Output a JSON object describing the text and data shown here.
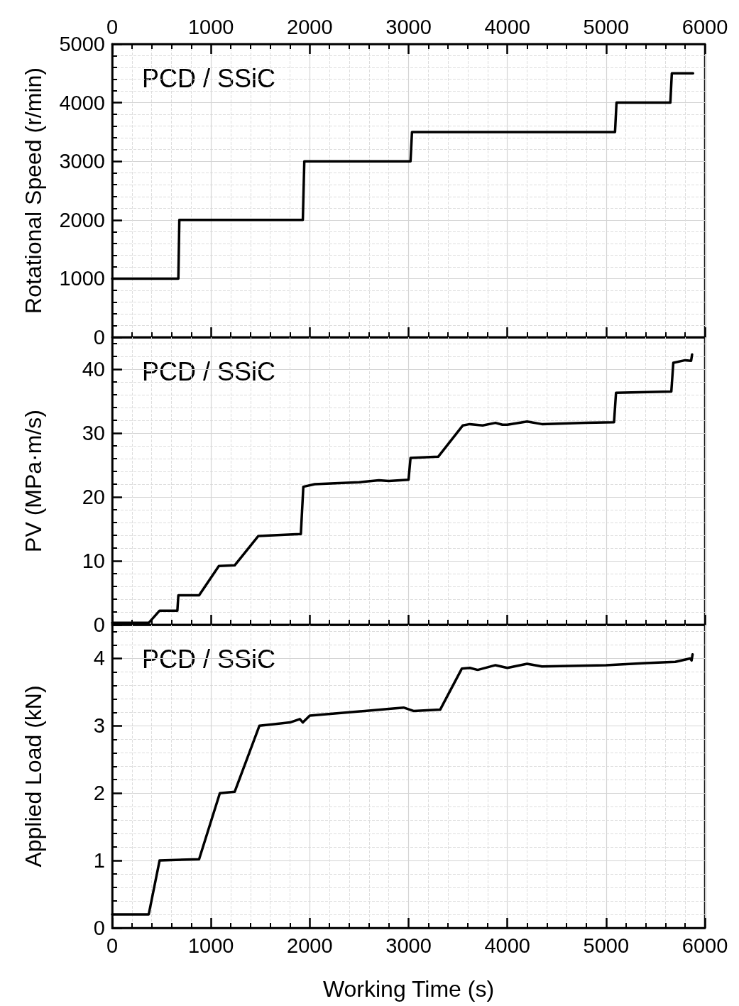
{
  "chart_data": [
    {
      "type": "line",
      "ylabel": "Rotational Speed (r/min)",
      "annotations": [
        "PCD / SSiC"
      ],
      "xlim": [
        0,
        6000
      ],
      "xticks": [
        0,
        1000,
        2000,
        3000,
        4000,
        5000,
        6000
      ],
      "x2lim": [
        0,
        6000
      ],
      "x2ticks": [
        0,
        1000,
        2000,
        3000,
        4000,
        5000,
        6000
      ],
      "ylim": [
        0,
        5000
      ],
      "yticks": [
        0,
        1000,
        2000,
        3000,
        4000,
        5000
      ],
      "grid": true,
      "tick_labels": "y",
      "marker": "none",
      "line_style": "solid",
      "series": [
        {
          "color": "#000000",
          "x": [
            0,
            670,
            680,
            1930,
            1945,
            3020,
            3035,
            5090,
            5105,
            5650,
            5665,
            5880
          ],
          "values": [
            1000,
            1000,
            2000,
            2000,
            3000,
            3000,
            3500,
            3500,
            4000,
            4000,
            4500,
            4500
          ]
        }
      ]
    },
    {
      "type": "line",
      "ylabel": "PV (MPa·m/s)",
      "annotations": [
        "PCD / SSiC"
      ],
      "xlim": [
        0,
        6000
      ],
      "xticks": [
        0,
        1000,
        2000,
        3000,
        4000,
        5000,
        6000
      ],
      "ylim": [
        0,
        45
      ],
      "yticks": [
        0,
        10,
        20,
        30,
        40
      ],
      "grid": true,
      "tick_labels": "y",
      "marker": "none",
      "line_style": "solid",
      "series": [
        {
          "color": "#000000",
          "x": [
            0,
            370,
            480,
            660,
            670,
            880,
            1080,
            1240,
            1480,
            1900,
            1910,
            1935,
            2050,
            2500,
            2700,
            2800,
            3000,
            3020,
            3300,
            3550,
            3620,
            3750,
            3880,
            3950,
            4000,
            4200,
            4350,
            4800,
            5080,
            5100,
            5660,
            5680,
            5800,
            5860,
            5870
          ],
          "values": [
            0.3,
            0.3,
            2.2,
            2.2,
            4.6,
            4.6,
            9.2,
            9.3,
            13.9,
            14.2,
            14.2,
            21.6,
            22.0,
            22.3,
            22.6,
            22.5,
            22.7,
            26.1,
            26.3,
            31.2,
            31.4,
            31.2,
            31.6,
            31.3,
            31.3,
            31.8,
            31.4,
            31.6,
            31.7,
            36.3,
            36.5,
            41.0,
            41.4,
            41.3,
            42.3
          ]
        }
      ]
    },
    {
      "type": "line",
      "xlabel": "Working Time (s)",
      "ylabel": "Applied Load (kN)",
      "annotations": [
        "PCD / SSiC"
      ],
      "xlim": [
        0,
        6000
      ],
      "xticks": [
        0,
        1000,
        2000,
        3000,
        4000,
        5000,
        6000
      ],
      "ylim": [
        0,
        4.5
      ],
      "yticks": [
        0,
        1,
        2,
        3,
        4
      ],
      "grid": true,
      "marker": "none",
      "line_style": "solid",
      "series": [
        {
          "color": "#000000",
          "x": [
            0,
            370,
            480,
            880,
            1090,
            1240,
            1490,
            1800,
            1900,
            1930,
            2000,
            2400,
            2800,
            2950,
            3050,
            3320,
            3540,
            3620,
            3700,
            3880,
            4000,
            4200,
            4350,
            5000,
            5400,
            5700,
            5850,
            5865,
            5875
          ],
          "values": [
            0.2,
            0.2,
            1.0,
            1.02,
            2.0,
            2.02,
            3.0,
            3.05,
            3.1,
            3.05,
            3.15,
            3.2,
            3.25,
            3.27,
            3.22,
            3.24,
            3.85,
            3.86,
            3.83,
            3.9,
            3.86,
            3.92,
            3.88,
            3.9,
            3.93,
            3.95,
            4.0,
            3.97,
            4.06
          ]
        }
      ]
    }
  ]
}
